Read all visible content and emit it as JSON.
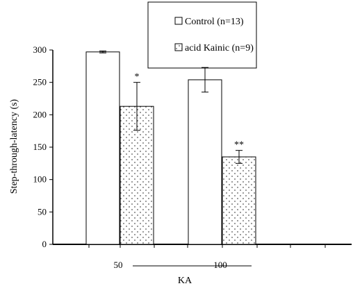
{
  "chart_data": {
    "type": "bar",
    "categories": [
      "50",
      "100"
    ],
    "series": [
      {
        "name": "Control (n=13)",
        "values": [
          297,
          254
        ],
        "errors": [
          1.5,
          19
        ],
        "fill": "#ffffff"
      },
      {
        "name": "acid Kainic  (n=9)",
        "values": [
          213,
          135
        ],
        "errors": [
          37,
          10
        ],
        "fill": "dots"
      }
    ],
    "significance": [
      {
        "category": "50",
        "series": 1,
        "label": "*"
      },
      {
        "category": "100",
        "series": 1,
        "label": "**"
      }
    ],
    "ylabel": "Step-through-latency (s)",
    "xlabel": "KA",
    "ylim": [
      0,
      300
    ],
    "yticks": [
      0,
      50,
      100,
      150,
      200,
      250,
      300
    ],
    "grid": false,
    "legend": "top-right"
  }
}
